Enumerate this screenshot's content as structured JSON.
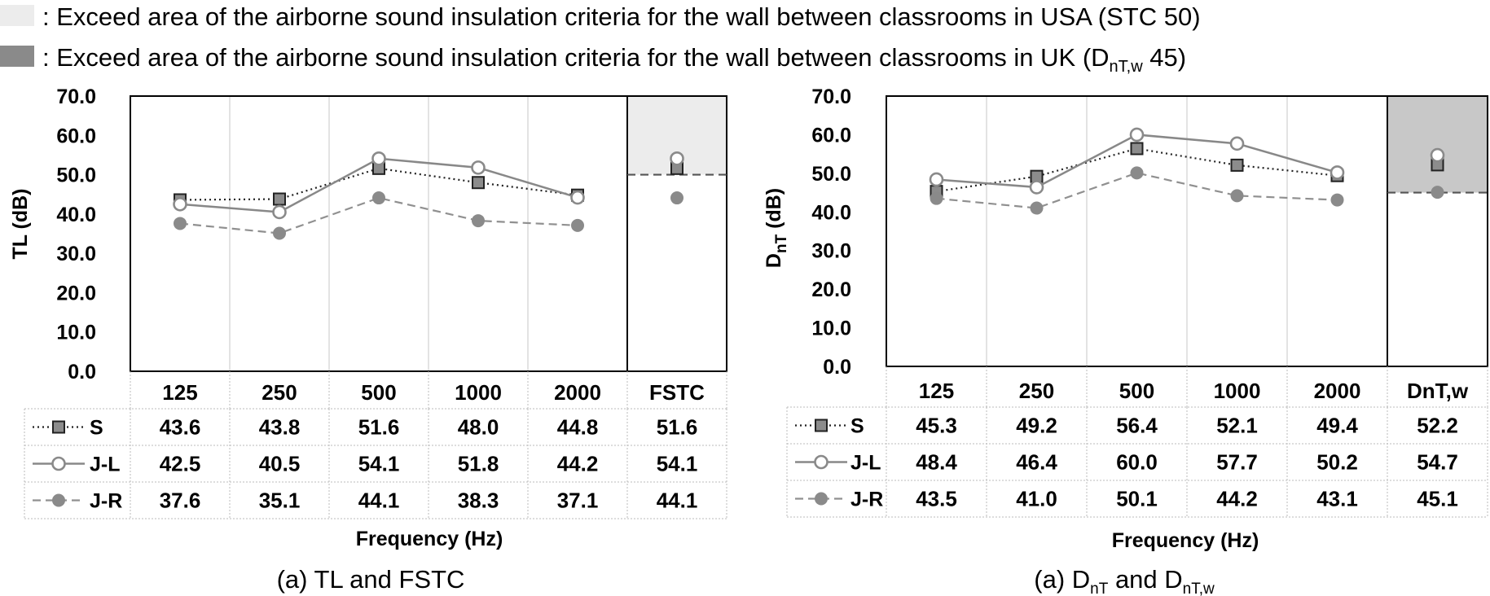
{
  "legend": {
    "usa": {
      "prefix": ": Exceed area of the airborne sound insulation criteria for the wall between classrooms in USA (STC 50)",
      "color": "#ececec"
    },
    "uk": {
      "prefix": ": Exceed area of the airborne sound insulation criteria for the wall between classrooms in UK (D",
      "sub": "nT,w",
      "suffix": " 45)",
      "color": "#8a8a8a"
    }
  },
  "chart_data": [
    {
      "type": "line",
      "ylabel": "TL (dB)",
      "xlabel": "Frequency (Hz)",
      "caption": "(a) TL and FSTC",
      "categories": [
        "125",
        "250",
        "500",
        "1000",
        "2000"
      ],
      "summary_label": "FSTC",
      "ylim": [
        0,
        70
      ],
      "yticks": [
        "0.0",
        "10.0",
        "20.0",
        "30.0",
        "40.0",
        "50.0",
        "60.0",
        "70.0"
      ],
      "criteria_line": 50,
      "criteria_color": "#ececec",
      "series": [
        {
          "name": "S",
          "values": [
            43.6,
            43.8,
            51.6,
            48.0,
            44.8
          ],
          "summary": 51.6,
          "labels": [
            "43.6",
            "43.8",
            "51.6",
            "48.0",
            "44.8"
          ],
          "summary_label": "51.6"
        },
        {
          "name": "J-L",
          "values": [
            42.5,
            40.5,
            54.1,
            51.8,
            44.2
          ],
          "summary": 54.1,
          "labels": [
            "42.5",
            "40.5",
            "54.1",
            "51.8",
            "44.2"
          ],
          "summary_label": "54.1"
        },
        {
          "name": "J-R",
          "values": [
            37.6,
            35.1,
            44.1,
            38.3,
            37.1
          ],
          "summary": 44.1,
          "labels": [
            "37.6",
            "35.1",
            "44.1",
            "38.3",
            "37.1"
          ],
          "summary_label": "44.1"
        }
      ]
    },
    {
      "type": "line",
      "ylabel": "D",
      "ylabel_sub": "nT",
      "ylabel_suffix": " (dB)",
      "xlabel": "Frequency (Hz)",
      "caption": "(a) D",
      "caption_sub1": "nT",
      "caption_mid": " and D",
      "caption_sub2": "nT,w",
      "categories": [
        "125",
        "250",
        "500",
        "1000",
        "2000"
      ],
      "summary_label": "DnT,w",
      "ylim": [
        0,
        70
      ],
      "yticks": [
        "0.0",
        "10.0",
        "20.0",
        "30.0",
        "40.0",
        "50.0",
        "60.0",
        "70.0"
      ],
      "criteria_line": 45,
      "criteria_color": "#c8c8c8",
      "series": [
        {
          "name": "S",
          "values": [
            45.3,
            49.2,
            56.4,
            52.1,
            49.4
          ],
          "summary": 52.2,
          "labels": [
            "45.3",
            "49.2",
            "56.4",
            "52.1",
            "49.4"
          ],
          "summary_label": "52.2"
        },
        {
          "name": "J-L",
          "values": [
            48.4,
            46.4,
            60.0,
            57.7,
            50.2
          ],
          "summary": 54.7,
          "labels": [
            "48.4",
            "46.4",
            "60.0",
            "57.7",
            "50.2"
          ],
          "summary_label": "54.7"
        },
        {
          "name": "J-R",
          "values": [
            43.5,
            41.0,
            50.1,
            44.2,
            43.1
          ],
          "summary": 45.1,
          "labels": [
            "43.5",
            "41.0",
            "50.1",
            "44.2",
            "43.1"
          ],
          "summary_label": "45.1"
        }
      ]
    }
  ]
}
